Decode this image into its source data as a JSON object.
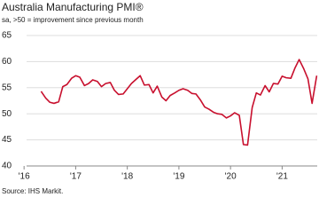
{
  "chart_data": {
    "type": "line",
    "title": "Australia Manufacturing PMI®",
    "subtitle": "sa, >50 = improvement since previous month",
    "source": "Source: IHS Markit.",
    "grid": true,
    "ylim": [
      40,
      65
    ],
    "yticks": [
      40,
      45,
      50,
      55,
      60,
      65
    ],
    "xlim": [
      2015.98,
      2021.68
    ],
    "xticks": [
      {
        "value": 2016,
        "label": "'16"
      },
      {
        "value": 2017,
        "label": "'17"
      },
      {
        "value": 2018,
        "label": "'18"
      },
      {
        "value": 2019,
        "label": "'19"
      },
      {
        "value": 2020,
        "label": "'20"
      },
      {
        "value": 2021,
        "label": "'21"
      }
    ],
    "x": [
      2016.33,
      2016.42,
      2016.5,
      2016.58,
      2016.67,
      2016.75,
      2016.83,
      2016.92,
      2017.0,
      2017.08,
      2017.17,
      2017.25,
      2017.33,
      2017.42,
      2017.5,
      2017.58,
      2017.67,
      2017.75,
      2017.83,
      2017.92,
      2018.0,
      2018.08,
      2018.17,
      2018.25,
      2018.33,
      2018.42,
      2018.5,
      2018.58,
      2018.67,
      2018.75,
      2018.83,
      2018.92,
      2019.0,
      2019.08,
      2019.17,
      2019.25,
      2019.33,
      2019.42,
      2019.5,
      2019.58,
      2019.67,
      2019.75,
      2019.83,
      2019.92,
      2020.0,
      2020.08,
      2020.17,
      2020.25,
      2020.33,
      2020.42,
      2020.5,
      2020.58,
      2020.67,
      2020.75,
      2020.83,
      2020.92,
      2021.0,
      2021.08,
      2021.17,
      2021.25,
      2021.33,
      2021.42,
      2021.5,
      2021.58,
      2021.67
    ],
    "series": [
      {
        "color": "#c8102e",
        "values": [
          54.3,
          53.0,
          52.2,
          52.0,
          52.3,
          55.2,
          55.6,
          56.8,
          57.3,
          57.0,
          55.4,
          55.8,
          56.5,
          56.2,
          55.2,
          55.8,
          56.0,
          54.5,
          53.7,
          53.8,
          54.8,
          55.8,
          56.6,
          57.3,
          55.5,
          55.6,
          54.0,
          55.3,
          53.2,
          52.5,
          53.5,
          54.0,
          54.5,
          54.8,
          54.5,
          53.9,
          53.8,
          52.6,
          51.3,
          50.9,
          50.3,
          50.0,
          49.9,
          49.2,
          49.6,
          50.2,
          49.7,
          44.1,
          44.0,
          51.2,
          54.0,
          53.6,
          55.4,
          54.2,
          55.8,
          55.7,
          57.2,
          56.9,
          56.8,
          58.8,
          60.4,
          58.6,
          56.7,
          52.0,
          57.3
        ]
      }
    ]
  }
}
